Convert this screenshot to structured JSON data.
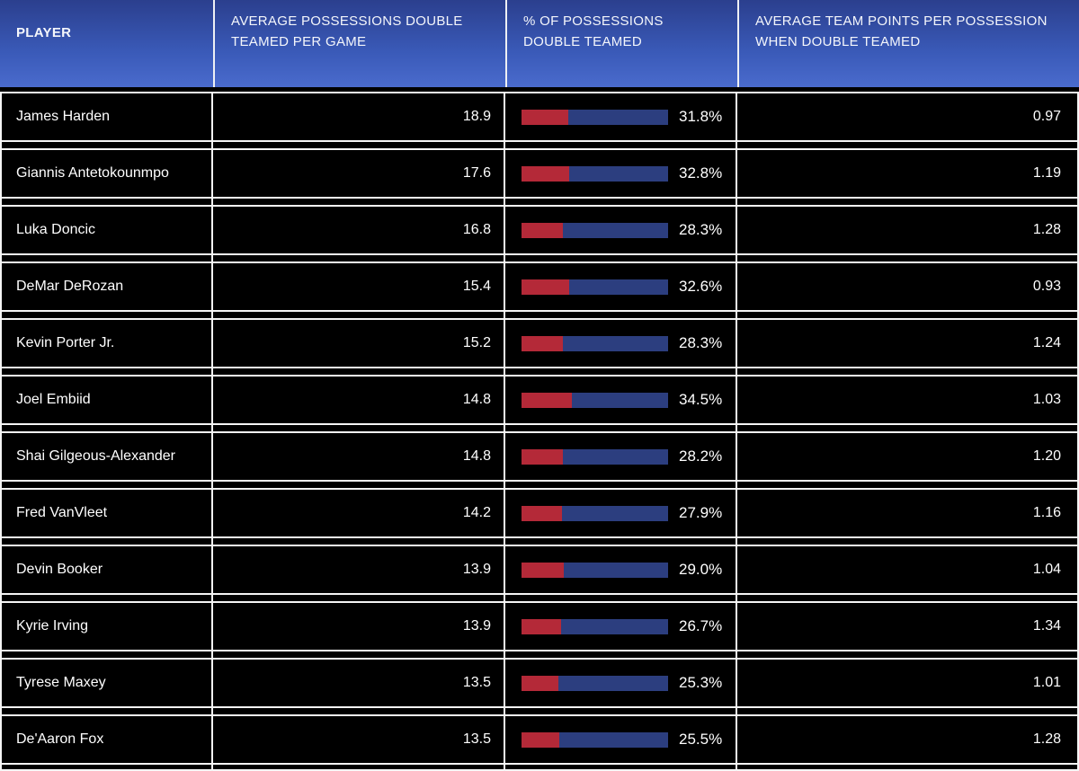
{
  "table": {
    "columns": [
      {
        "label": "PLAYER"
      },
      {
        "label": "AVERAGE POSSESSIONS DOUBLE TEAMED PER GAME"
      },
      {
        "label": "% OF POSSESSIONS DOUBLE TEAMED"
      },
      {
        "label": "AVERAGE TEAM POINTS PER POSSESSION WHEN DOUBLE TEAMED"
      }
    ],
    "rows": [
      {
        "player": "James Harden",
        "avg_possessions": "18.9",
        "pct_label": "31.8%",
        "pct_value": 31.8,
        "ppp": "0.97"
      },
      {
        "player": "Giannis Antetokounmpo",
        "avg_possessions": "17.6",
        "pct_label": "32.8%",
        "pct_value": 32.8,
        "ppp": "1.19"
      },
      {
        "player": "Luka Doncic",
        "avg_possessions": "16.8",
        "pct_label": "28.3%",
        "pct_value": 28.3,
        "ppp": "1.28"
      },
      {
        "player": "DeMar DeRozan",
        "avg_possessions": "15.4",
        "pct_label": "32.6%",
        "pct_value": 32.6,
        "ppp": "0.93"
      },
      {
        "player": "Kevin Porter Jr.",
        "avg_possessions": "15.2",
        "pct_label": "28.3%",
        "pct_value": 28.3,
        "ppp": "1.24"
      },
      {
        "player": "Joel Embiid",
        "avg_possessions": "14.8",
        "pct_label": "34.5%",
        "pct_value": 34.5,
        "ppp": "1.03"
      },
      {
        "player": "Shai Gilgeous-Alexander",
        "avg_possessions": "14.8",
        "pct_label": "28.2%",
        "pct_value": 28.2,
        "ppp": "1.20"
      },
      {
        "player": "Fred VanVleet",
        "avg_possessions": "14.2",
        "pct_label": "27.9%",
        "pct_value": 27.9,
        "ppp": "1.16"
      },
      {
        "player": "Devin Booker",
        "avg_possessions": "13.9",
        "pct_label": "29.0%",
        "pct_value": 29.0,
        "ppp": "1.04"
      },
      {
        "player": "Kyrie Irving",
        "avg_possessions": "13.9",
        "pct_label": "26.7%",
        "pct_value": 26.7,
        "ppp": "1.34"
      },
      {
        "player": "Tyrese Maxey",
        "avg_possessions": "13.5",
        "pct_label": "25.3%",
        "pct_value": 25.3,
        "ppp": "1.01"
      },
      {
        "player": "De'Aaron Fox",
        "avg_possessions": "13.5",
        "pct_label": "25.5%",
        "pct_value": 25.5,
        "ppp": "1.28"
      }
    ]
  },
  "colors": {
    "header_gradient_top": "#2b3f8e",
    "header_gradient_bottom": "#4a6bcd",
    "row_background": "#000000",
    "grid_line": "#f5f5f5",
    "bar_filled_red": "#b42938",
    "bar_remainder_blue": "#2c3e7f",
    "text": "#ffffff"
  },
  "chart_data": {
    "type": "table",
    "title": "",
    "columns": [
      "PLAYER",
      "AVERAGE POSSESSIONS DOUBLE TEAMED PER GAME",
      "% OF POSSESSIONS DOUBLE TEAMED",
      "AVERAGE TEAM POINTS PER POSSESSION WHEN DOUBLE TEAMED"
    ],
    "categories": [
      "James Harden",
      "Giannis Antetokounmpo",
      "Luka Doncic",
      "DeMar DeRozan",
      "Kevin Porter Jr.",
      "Joel Embiid",
      "Shai Gilgeous-Alexander",
      "Fred VanVleet",
      "Devin Booker",
      "Kyrie Irving",
      "Tyrese Maxey",
      "De'Aaron Fox"
    ],
    "series": [
      {
        "name": "Average possessions double teamed per game",
        "values": [
          18.9,
          17.6,
          16.8,
          15.4,
          15.2,
          14.8,
          14.8,
          14.2,
          13.9,
          13.9,
          13.5,
          13.5
        ]
      },
      {
        "name": "% of possessions double teamed",
        "display": "bar",
        "range": [
          0,
          100
        ],
        "bar_fill_color": "#b42938",
        "bar_remainder_color": "#2c3e7f",
        "values": [
          31.8,
          32.8,
          28.3,
          32.6,
          28.3,
          34.5,
          28.2,
          27.9,
          29.0,
          26.7,
          25.3,
          25.5
        ]
      },
      {
        "name": "Average team points per possession when double teamed",
        "values": [
          0.97,
          1.19,
          1.28,
          0.93,
          1.24,
          1.03,
          1.2,
          1.16,
          1.04,
          1.34,
          1.01,
          1.28
        ]
      }
    ]
  }
}
